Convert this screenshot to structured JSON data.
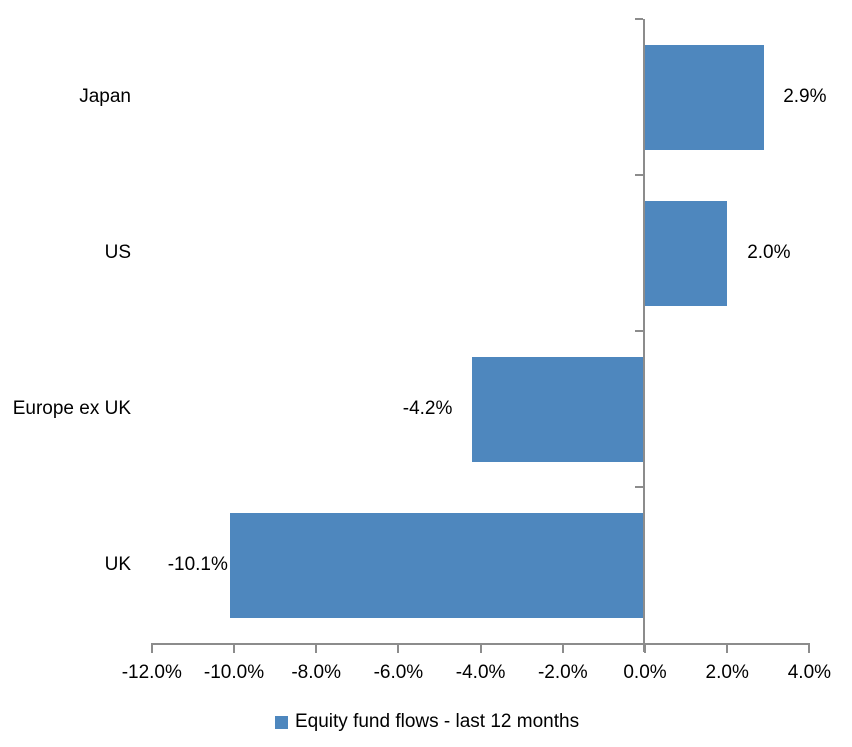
{
  "chart_data": {
    "type": "bar",
    "orientation": "horizontal",
    "title": "",
    "categories": [
      "Japan",
      "US",
      "Europe ex UK",
      "UK"
    ],
    "series": [
      {
        "name": "Equity fund flows - last 12 months",
        "values": [
          2.9,
          2.0,
          -4.2,
          -10.1
        ],
        "data_labels": [
          "2.9%",
          "2.0%",
          "-4.2%",
          "-10.1%"
        ]
      }
    ],
    "xlim": [
      -12,
      4
    ],
    "x_ticks": [
      {
        "value": -12,
        "label": "-12.0%"
      },
      {
        "value": -10,
        "label": "-10.0%"
      },
      {
        "value": -8,
        "label": "-8.0%"
      },
      {
        "value": -6,
        "label": "-6.0%"
      },
      {
        "value": -4,
        "label": "-4.0%"
      },
      {
        "value": -2,
        "label": "-2.0%"
      },
      {
        "value": 0,
        "label": "0.0%"
      },
      {
        "value": 2,
        "label": "2.0%"
      },
      {
        "value": 4,
        "label": "4.0%"
      }
    ],
    "grid": false,
    "legend": {
      "position": "bottom",
      "label": "Equity fund flows - last 12 months"
    },
    "colors": {
      "bar": "#4E87BE",
      "axis": "#8C8C8C",
      "text": "#000000"
    }
  }
}
